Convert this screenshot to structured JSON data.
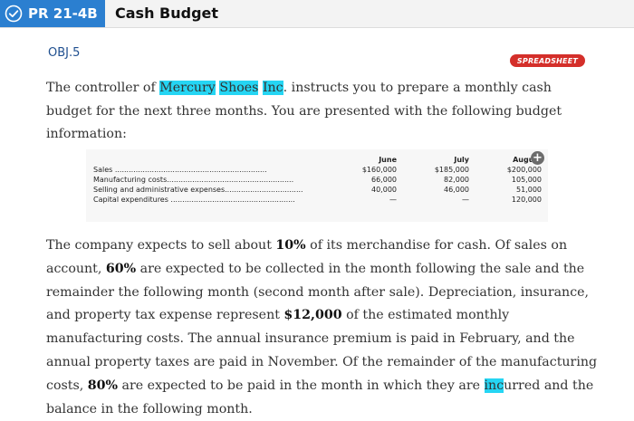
{
  "header": {
    "problem_id": "PR 21-4B",
    "title": "Cash Budget",
    "accent_color": "#2b7fd0"
  },
  "objective": "OBJ.5",
  "badge": "SPREADSHEET",
  "intro": {
    "t1": "The controller of ",
    "company_1": "Mercury",
    "sp1": " ",
    "company_2": "Shoes",
    "sp2": " ",
    "company_3": "Inc",
    "t2": ". instructs you to prepare a monthly cash budget for the next three months. You are presented with the following budget information:"
  },
  "table": {
    "columns": [
      "June",
      "July",
      "August"
    ],
    "rows": [
      {
        "label": "Sales",
        "dots": " ..................................................................",
        "values": [
          "$160,000",
          "$185,000",
          "$200,000"
        ]
      },
      {
        "label": "Manufacturing costs",
        "dots": ".......................................................",
        "values": [
          "66,000",
          "82,000",
          "105,000"
        ]
      },
      {
        "label": "Selling and administrative expenses",
        "dots": "..................................",
        "values": [
          "40,000",
          "46,000",
          "51,000"
        ]
      },
      {
        "label": "Capital expenditures",
        "dots": " ......................................................",
        "values": [
          "—",
          "—",
          "120,000"
        ]
      }
    ]
  },
  "paragraph": {
    "s1": "The company expects to sell about ",
    "b1": "10%",
    "s2": " of its merchandise for cash. Of sales on account, ",
    "b2": "60%",
    "s3": " are expected to be collected in the month following the sale and the remainder the following month (second month after sale). Depreciation, insurance, and property tax expense represent ",
    "b3": "$12,000",
    "s4": " of the estimated monthly manufacturing costs. The annual insurance premium is paid in February, and the annual property taxes are paid in November. Of the remainder of the manufacturing costs, ",
    "b4": "80%",
    "s5": " are expected to be paid in the month in which they are ",
    "hl": "inc",
    "s6": "urred and the balance in the following month."
  }
}
